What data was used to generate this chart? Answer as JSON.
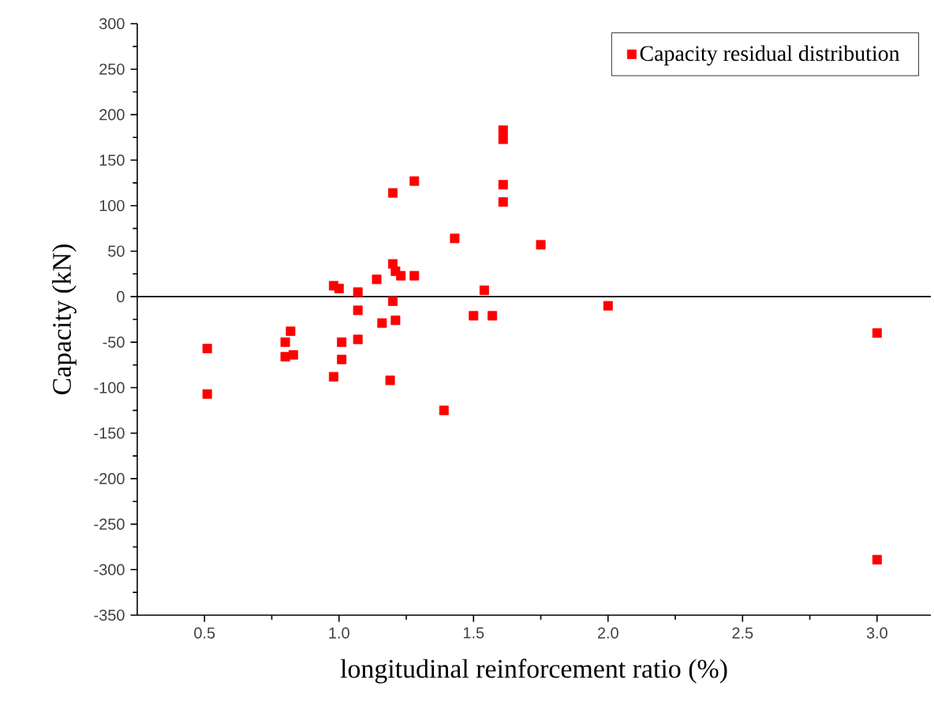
{
  "chart_data": {
    "type": "scatter",
    "xlabel": "longitudinal reinforcement ratio (%)",
    "ylabel": "Capacity (kN)",
    "xlim": [
      0.25,
      3.2
    ],
    "ylim": [
      -350,
      300
    ],
    "xticks": [
      {
        "value": 0.5,
        "label": "0.5"
      },
      {
        "value": 1.0,
        "label": "1.0"
      },
      {
        "value": 1.5,
        "label": "1.5"
      },
      {
        "value": 2.0,
        "label": "2.0"
      },
      {
        "value": 2.5,
        "label": "2.5"
      },
      {
        "value": 3.0,
        "label": "3.0"
      }
    ],
    "yticks": [
      -350,
      -300,
      -250,
      -200,
      -150,
      -100,
      -50,
      0,
      50,
      100,
      150,
      200,
      250,
      300
    ],
    "ref_lines": [
      {
        "axis": "y",
        "value": 0,
        "color": "#000000"
      }
    ],
    "grid": false,
    "legend": "top right",
    "marker": "square",
    "series": [
      {
        "name": "Capacity residual distribution",
        "color": "#ff0000",
        "x": [
          0.51,
          0.51,
          0.82,
          0.8,
          0.8,
          0.83,
          0.98,
          1.0,
          1.01,
          1.01,
          0.98,
          1.07,
          1.07,
          1.07,
          1.14,
          1.16,
          1.21,
          1.2,
          1.2,
          1.28,
          1.19,
          1.21,
          1.2,
          1.23,
          1.28,
          1.39,
          1.43,
          1.54,
          1.5,
          1.57,
          1.61,
          1.61,
          1.61,
          1.61,
          1.75,
          2.0,
          3.0,
          3.0
        ],
        "values": [
          -57,
          -107,
          -38,
          -50,
          -66,
          -64,
          12,
          9,
          -50,
          -69,
          -88,
          5,
          -15,
          -47,
          19,
          -29,
          -26,
          -5,
          114,
          127,
          -92,
          28,
          36,
          23,
          23,
          -125,
          64,
          7,
          -21,
          -21,
          183,
          173,
          123,
          104,
          57,
          -10,
          -40,
          -289
        ]
      }
    ]
  }
}
